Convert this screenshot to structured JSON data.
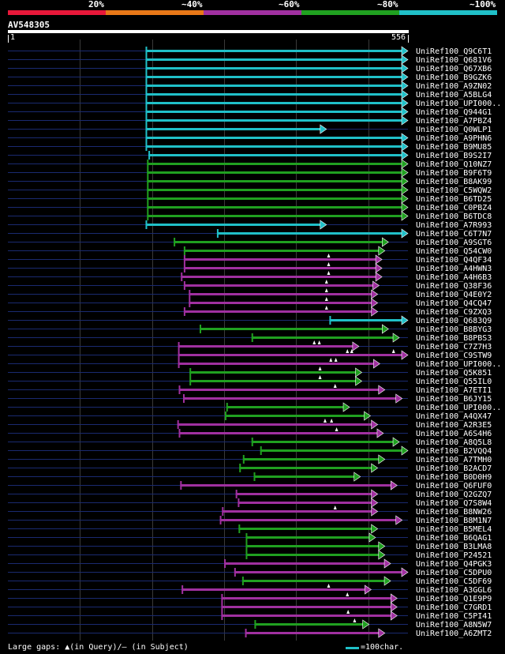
{
  "header": {
    "identity_labels": [
      "20%",
      "~40%",
      "~60%",
      "~80%",
      "~100%"
    ],
    "identity_colors": [
      "#e8183a",
      "#e87818",
      "#a030a0",
      "#20a020",
      "#20c0c8"
    ],
    "query_name": "AV548305",
    "query_start": "1",
    "query_end": "556"
  },
  "footer": {
    "gaps_text": "Large gaps: ▲(in Query)/— (in Subject)",
    "scale_text": "=100char.",
    "scale_color": "#20c0c8"
  },
  "hits": [
    {
      "label": "UniRef100_Q9C6T1",
      "start": 192,
      "end": 556,
      "color": "#20c0c8"
    },
    {
      "label": "UniRef100_Q681V6",
      "start": 192,
      "end": 556,
      "color": "#20c0c8"
    },
    {
      "label": "UniRef100_Q67XB6",
      "start": 192,
      "end": 556,
      "color": "#20c0c8"
    },
    {
      "label": "UniRef100_B9GZK6",
      "start": 192,
      "end": 556,
      "color": "#20c0c8"
    },
    {
      "label": "UniRef100_A9ZN02",
      "start": 192,
      "end": 556,
      "color": "#20c0c8"
    },
    {
      "label": "UniRef100_A5BLG4",
      "start": 192,
      "end": 556,
      "color": "#20c0c8"
    },
    {
      "label": "UniRef100_UPI000..",
      "start": 192,
      "end": 556,
      "color": "#20c0c8"
    },
    {
      "label": "UniRef100_Q944G1",
      "start": 192,
      "end": 556,
      "color": "#20c0c8"
    },
    {
      "label": "UniRef100_A7PBZ4",
      "start": 192,
      "end": 556,
      "color": "#20c0c8"
    },
    {
      "label": "UniRef100_Q0WLP1",
      "start": 192,
      "end": 443,
      "color": "#20c0c8"
    },
    {
      "label": "UniRef100_A9PHN6",
      "start": 192,
      "end": 556,
      "color": "#20c0c8"
    },
    {
      "label": "UniRef100_B9MU85",
      "start": 192,
      "end": 556,
      "color": "#20c0c8"
    },
    {
      "label": "UniRef100_B9S2I7",
      "start": 196,
      "end": 556,
      "color": "#20c0c8"
    },
    {
      "label": "UniRef100_Q10NZ7",
      "start": 194,
      "end": 556,
      "color": "#20a020"
    },
    {
      "label": "UniRef100_B9F6T9",
      "start": 194,
      "end": 556,
      "color": "#20a020"
    },
    {
      "label": "UniRef100_B8AK99",
      "start": 194,
      "end": 556,
      "color": "#20a020"
    },
    {
      "label": "UniRef100_C5WQW2",
      "start": 194,
      "end": 556,
      "color": "#20a020"
    },
    {
      "label": "UniRef100_B6TD25",
      "start": 194,
      "end": 556,
      "color": "#20a020"
    },
    {
      "label": "UniRef100_C0PBZ4",
      "start": 194,
      "end": 556,
      "color": "#20a020"
    },
    {
      "label": "UniRef100_B6TDC8",
      "start": 194,
      "end": 556,
      "color": "#20a020"
    },
    {
      "label": "UniRef100_A7R993",
      "start": 192,
      "end": 443,
      "color": "#20c0c8"
    },
    {
      "label": "UniRef100_C6T7N7",
      "start": 291,
      "end": 556,
      "color": "#20c0c8"
    },
    {
      "label": "UniRef100_A9SGT6",
      "start": 231,
      "end": 529,
      "color": "#20a020"
    },
    {
      "label": "UniRef100_Q54CW0",
      "start": 245,
      "end": 524,
      "color": "#20a020"
    },
    {
      "label": "UniRef100_Q4QF34",
      "start": 245,
      "end": 520,
      "color": "#a030a0",
      "marks": [
        446
      ]
    },
    {
      "label": "UniRef100_A4HWN3",
      "start": 245,
      "end": 520,
      "color": "#a030a0",
      "marks": [
        446
      ]
    },
    {
      "label": "UniRef100_A4H6B3",
      "start": 241,
      "end": 520,
      "color": "#a030a0",
      "marks": [
        446
      ]
    },
    {
      "label": "UniRef100_Q38F36",
      "start": 245,
      "end": 516,
      "color": "#a030a0",
      "marks": [
        443
      ]
    },
    {
      "label": "UniRef100_Q4E0Y2",
      "start": 252,
      "end": 514,
      "color": "#a030a0",
      "marks": [
        443
      ]
    },
    {
      "label": "UniRef100_Q4CQ47",
      "start": 252,
      "end": 514,
      "color": "#a030a0",
      "marks": [
        443
      ]
    },
    {
      "label": "UniRef100_C9ZXQ3",
      "start": 245,
      "end": 514,
      "color": "#a030a0",
      "marks": [
        443
      ]
    },
    {
      "label": "UniRef100_Q683Q9",
      "start": 447,
      "end": 556,
      "color": "#20c0c8"
    },
    {
      "label": "UniRef100_B8BYG3",
      "start": 267,
      "end": 529,
      "color": "#20a020"
    },
    {
      "label": "UniRef100_B8PBS3",
      "start": 339,
      "end": 544,
      "color": "#20a020"
    },
    {
      "label": "UniRef100_C7Z7H3",
      "start": 237,
      "end": 488,
      "color": "#a030a0",
      "marks": [
        426,
        433
      ]
    },
    {
      "label": "UniRef100_C9STW9",
      "start": 237,
      "end": 556,
      "color": "#a030a0",
      "marks": [
        472,
        478,
        536
      ]
    },
    {
      "label": "UniRef100_UPI000..",
      "start": 237,
      "end": 517,
      "color": "#a030a0",
      "marks": [
        449,
        456
      ]
    },
    {
      "label": "UniRef100_Q5K851",
      "start": 253,
      "end": 492,
      "color": "#20a020",
      "marks": [
        434
      ]
    },
    {
      "label": "UniRef100_Q55IL0",
      "start": 253,
      "end": 492,
      "color": "#20a020",
      "marks": [
        434
      ]
    },
    {
      "label": "UniRef100_A7ETI1",
      "start": 238,
      "end": 524,
      "color": "#a030a0",
      "marks": [
        455
      ]
    },
    {
      "label": "UniRef100_B6JY15",
      "start": 244,
      "end": 548,
      "color": "#a030a0"
    },
    {
      "label": "UniRef100_UPI000..",
      "start": 304,
      "end": 475,
      "color": "#20a020"
    },
    {
      "label": "UniRef100_A4QX47",
      "start": 302,
      "end": 504,
      "color": "#20a020"
    },
    {
      "label": "UniRef100_A2R3E5",
      "start": 236,
      "end": 514,
      "color": "#a030a0",
      "marks": [
        441,
        450
      ]
    },
    {
      "label": "UniRef100_A6S4H6",
      "start": 238,
      "end": 522,
      "color": "#a030a0",
      "marks": [
        457
      ]
    },
    {
      "label": "UniRef100_A8Q5L8",
      "start": 339,
      "end": 544,
      "color": "#20a020"
    },
    {
      "label": "UniRef100_B2VQQ4",
      "start": 351,
      "end": 556,
      "color": "#20a020"
    },
    {
      "label": "UniRef100_A7TMH0",
      "start": 327,
      "end": 524,
      "color": "#20a020"
    },
    {
      "label": "UniRef100_B2ACD7",
      "start": 322,
      "end": 514,
      "color": "#20a020"
    },
    {
      "label": "UniRef100_B0D0H9",
      "start": 342,
      "end": 490,
      "color": "#20a020"
    },
    {
      "label": "UniRef100_Q6FUF0",
      "start": 240,
      "end": 541,
      "color": "#a030a0"
    },
    {
      "label": "UniRef100_Q2GZQ7",
      "start": 317,
      "end": 514,
      "color": "#a030a0"
    },
    {
      "label": "UniRef100_Q7S8W4",
      "start": 320,
      "end": 514,
      "color": "#a030a0"
    },
    {
      "label": "UniRef100_B8NW26",
      "start": 298,
      "end": 514,
      "color": "#a030a0",
      "marks": [
        455
      ]
    },
    {
      "label": "UniRef100_B8M1N7",
      "start": 295,
      "end": 548,
      "color": "#a030a0"
    },
    {
      "label": "UniRef100_B5MEL4",
      "start": 321,
      "end": 514,
      "color": "#20a020"
    },
    {
      "label": "UniRef100_B6QAG1",
      "start": 331,
      "end": 511,
      "color": "#20a020"
    },
    {
      "label": "UniRef100_B3LMA8",
      "start": 331,
      "end": 524,
      "color": "#20a020"
    },
    {
      "label": "UniRef100_P24521",
      "start": 331,
      "end": 524,
      "color": "#20a020"
    },
    {
      "label": "UniRef100_Q4PGK3",
      "start": 301,
      "end": 532,
      "color": "#a030a0"
    },
    {
      "label": "UniRef100_C5DPU0",
      "start": 315,
      "end": 556,
      "color": "#a030a0"
    },
    {
      "label": "UniRef100_C5DF69",
      "start": 326,
      "end": 532,
      "color": "#20a020"
    },
    {
      "label": "UniRef100_A3GGL6",
      "start": 242,
      "end": 505,
      "color": "#a030a0",
      "marks": [
        446
      ]
    },
    {
      "label": "UniRef100_Q1E9P9",
      "start": 297,
      "end": 541,
      "color": "#a030a0",
      "marks": [
        472
      ]
    },
    {
      "label": "UniRef100_C7GRD1",
      "start": 297,
      "end": 541,
      "color": "#a030a0"
    },
    {
      "label": "UniRef100_C5PI41",
      "start": 297,
      "end": 541,
      "color": "#a030a0",
      "marks": [
        473
      ]
    },
    {
      "label": "UniRef100_A8N5W7",
      "start": 343,
      "end": 502,
      "color": "#20a020",
      "marks": [
        482
      ]
    },
    {
      "label": "UniRef100_A6ZMT2",
      "start": 330,
      "end": 524,
      "color": "#a030a0"
    }
  ]
}
